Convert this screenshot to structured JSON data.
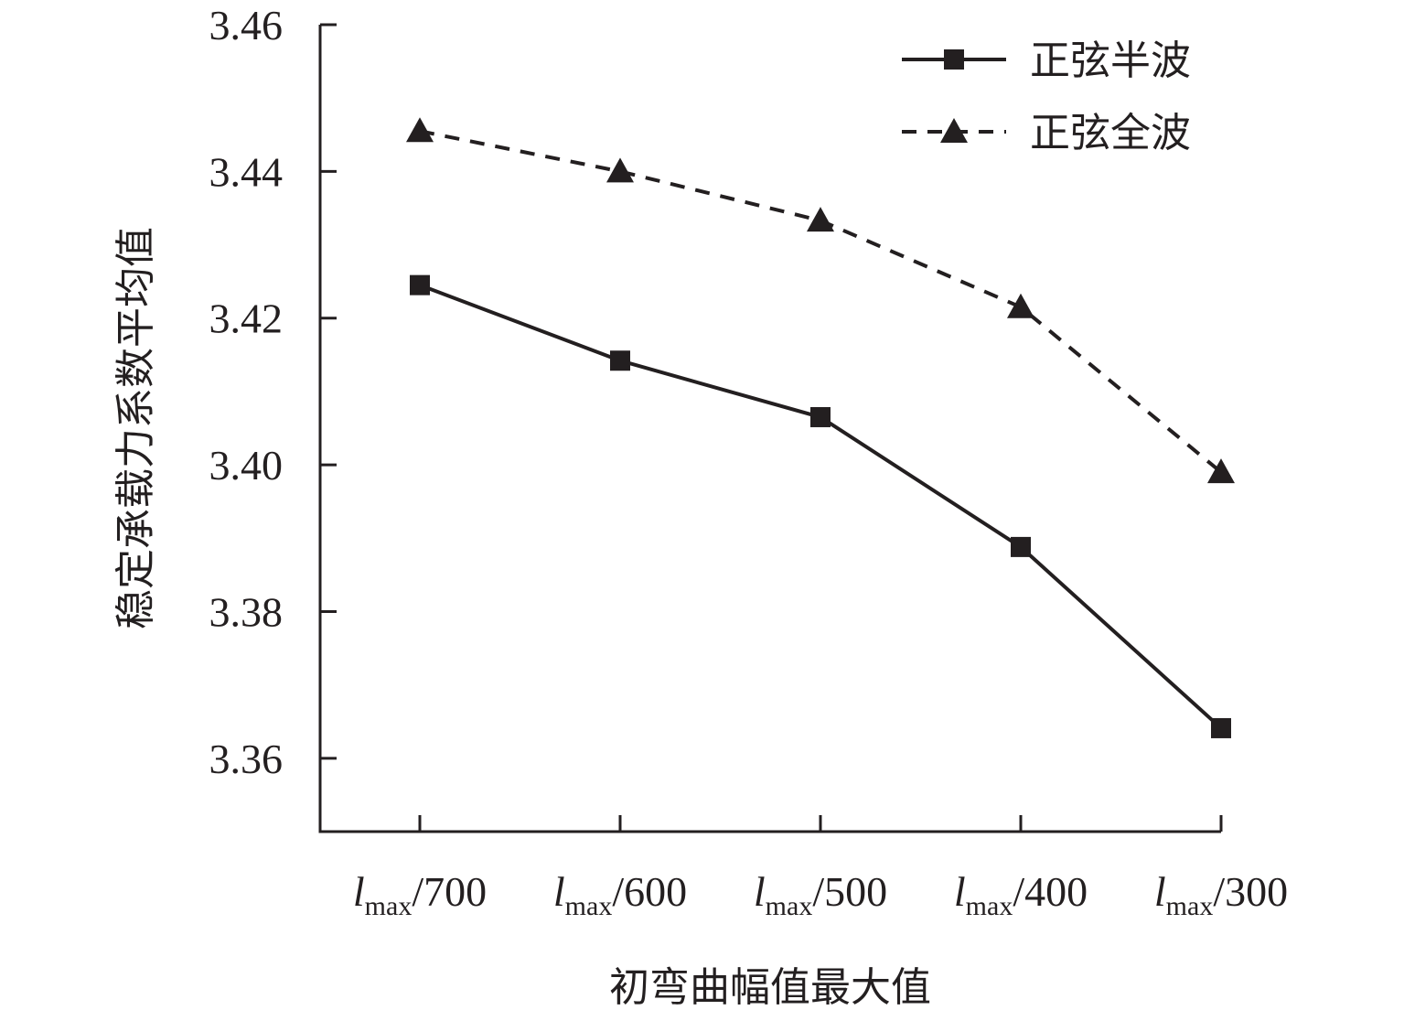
{
  "chart_data": {
    "type": "line",
    "categories": [
      {
        "main": "l",
        "sub": "max",
        "rest": "/700"
      },
      {
        "main": "l",
        "sub": "max",
        "rest": "/600"
      },
      {
        "main": "l",
        "sub": "max",
        "rest": "/500"
      },
      {
        "main": "l",
        "sub": "max",
        "rest": "/400"
      },
      {
        "main": "l",
        "sub": "max",
        "rest": "/300"
      }
    ],
    "series": [
      {
        "name": "正弦半波",
        "marker": "square",
        "line": "solid",
        "values": [
          3.4245,
          3.4142,
          3.4065,
          3.3888,
          3.3641
        ]
      },
      {
        "name": "正弦全波",
        "marker": "triangle",
        "line": "dashed",
        "values": [
          3.4455,
          3.44,
          3.4333,
          3.4215,
          3.399
        ]
      }
    ],
    "xlabel": "初弯曲幅值最大值",
    "ylabel": "稳定承载力系数平均值",
    "ylim": [
      3.35,
      3.46
    ],
    "yticks": [
      "3.36",
      "3.38",
      "3.40",
      "3.42",
      "3.44",
      "3.46"
    ],
    "grid": false,
    "legend_position": "top-right",
    "colors": {
      "line": "#231f20"
    }
  }
}
